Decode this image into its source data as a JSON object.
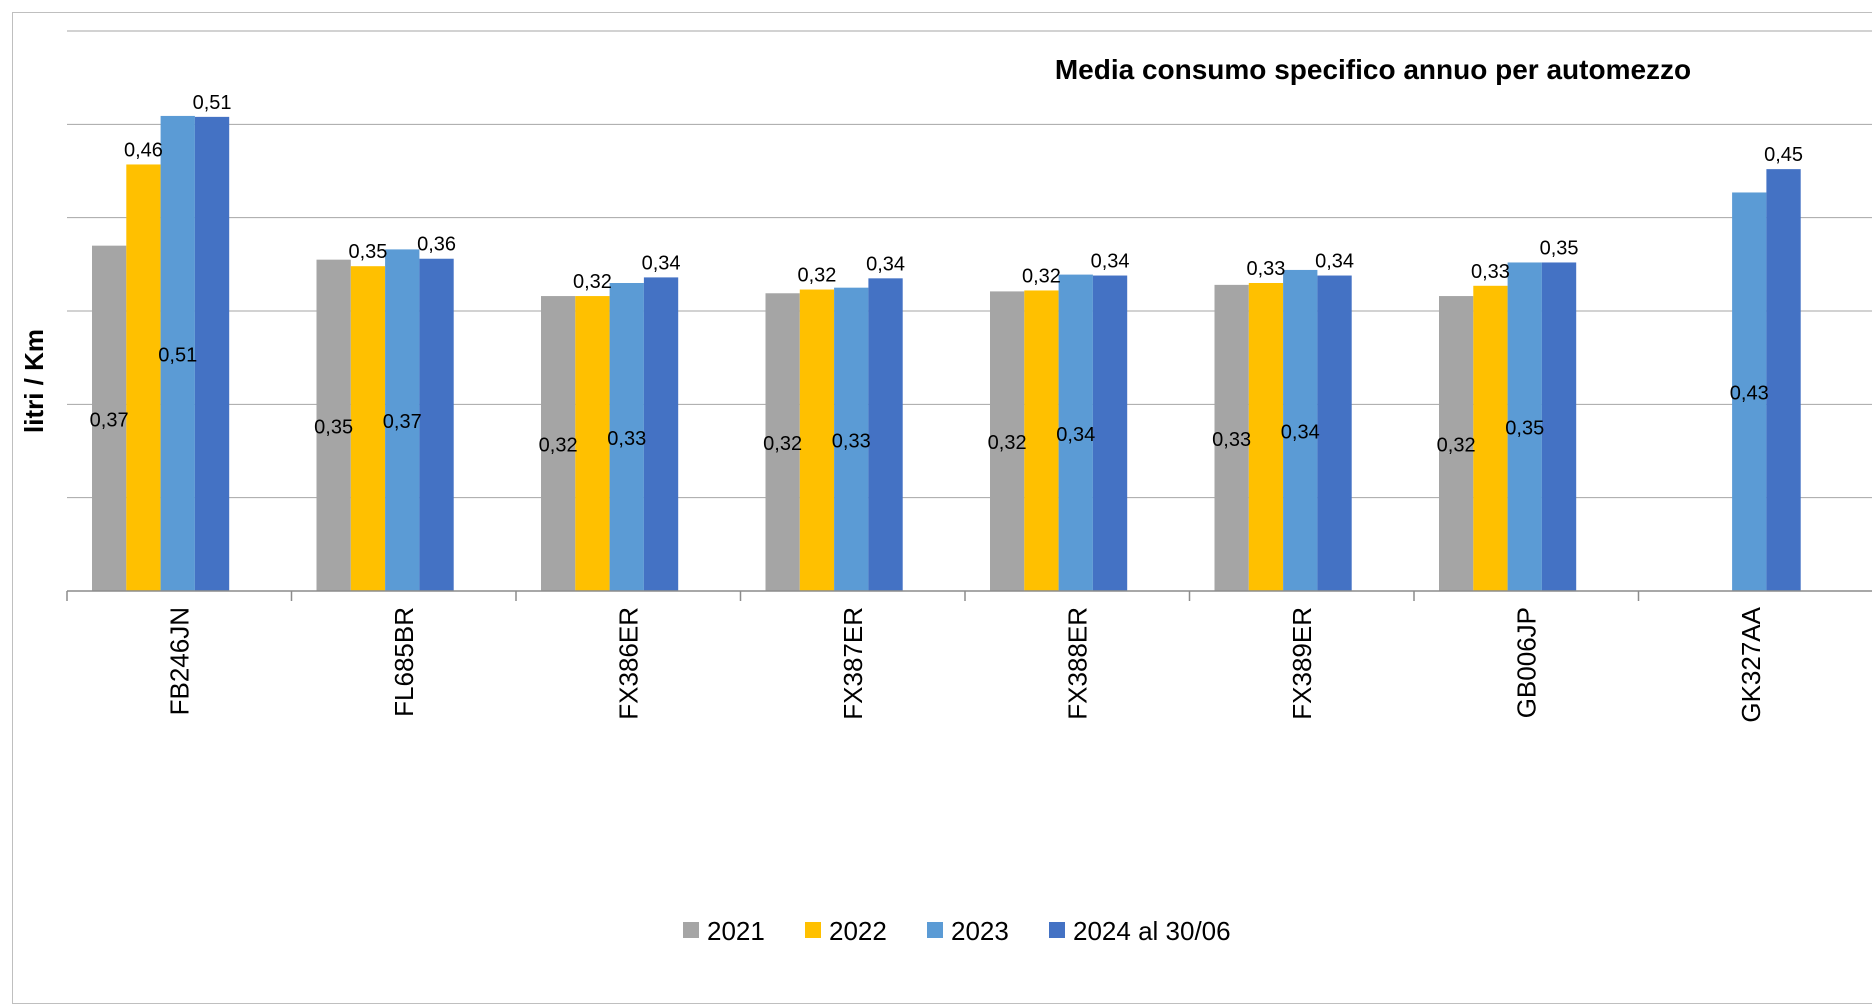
{
  "colors": {
    "gridline": "#a6a6a6",
    "axis": "#8c8c8c"
  },
  "chart_data": {
    "type": "bar",
    "title": "Media consumo specifico annuo per automezzo",
    "xlabel": "",
    "ylabel": "litri / Km",
    "ylim": [
      0,
      0.6
    ],
    "grid": true,
    "legend_position": "bottom",
    "categories": [
      "FB246JN",
      "FL685BR",
      "FX386ER",
      "FX387ER",
      "FX388ER",
      "FX389ER",
      "GB006JP",
      "GK327AA"
    ],
    "series": [
      {
        "name": "2021",
        "color": "#a5a5a5",
        "values": [
          0.37,
          0.355,
          0.316,
          0.319,
          0.321,
          0.328,
          0.316,
          null
        ],
        "labels": [
          "0,37",
          "0,35",
          "0,32",
          "0,32",
          "0,32",
          "0,33",
          "0,32",
          ""
        ],
        "label_position": "inside"
      },
      {
        "name": "2022",
        "color": "#ffc000",
        "values": [
          0.457,
          0.348,
          0.316,
          0.323,
          0.322,
          0.33,
          0.327,
          null
        ],
        "labels": [
          "0,46",
          "0,35",
          "0,32",
          "0,32",
          "0,32",
          "0,33",
          "0,33",
          ""
        ],
        "label_position": "above"
      },
      {
        "name": "2023",
        "color": "#5b9bd5",
        "values": [
          0.509,
          0.366,
          0.33,
          0.325,
          0.339,
          0.344,
          0.352,
          0.427
        ],
        "labels": [
          "0,51",
          "0,37",
          "0,33",
          "0,33",
          "0,34",
          "0,34",
          "0,35",
          "0,43"
        ],
        "label_position": "inside"
      },
      {
        "name": "2024 al 30/06",
        "color": "#4472c4",
        "values": [
          0.508,
          0.356,
          0.336,
          0.335,
          0.338,
          0.338,
          0.352,
          0.452
        ],
        "labels": [
          "0,51",
          "0,36",
          "0,34",
          "0,34",
          "0,34",
          "0,34",
          "0,35",
          "0,45"
        ],
        "label_position": "above"
      }
    ]
  }
}
